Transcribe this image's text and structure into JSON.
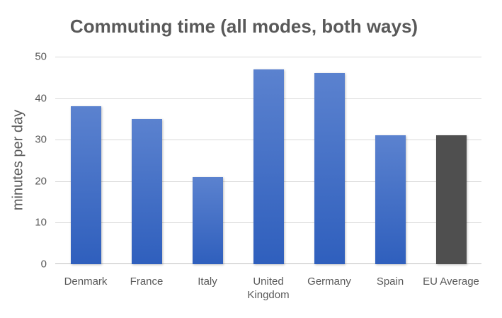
{
  "chart_data": {
    "type": "bar",
    "title": "Commuting time (all modes, both ways)",
    "xlabel": "",
    "ylabel": "minutes per day",
    "ylim": [
      0,
      50
    ],
    "yticks": [
      "0",
      "10",
      "20",
      "30",
      "40",
      "50"
    ],
    "grid": true,
    "legend": null,
    "categories": [
      "Denmark",
      "France",
      "Italy",
      "United Kingdom",
      "Germany",
      "Spain",
      "EU Average"
    ],
    "category_lines": [
      [
        "Denmark"
      ],
      [
        "France"
      ],
      [
        "Italy"
      ],
      [
        "United",
        "Kingdom"
      ],
      [
        "Germany"
      ],
      [
        "Spain"
      ],
      [
        "EU Average"
      ]
    ],
    "values": [
      38,
      35,
      21,
      47,
      46,
      31,
      31
    ],
    "colors": [
      "#4472c4",
      "#4472c4",
      "#4472c4",
      "#4472c4",
      "#4472c4",
      "#4472c4",
      "#4f4f4f"
    ]
  }
}
